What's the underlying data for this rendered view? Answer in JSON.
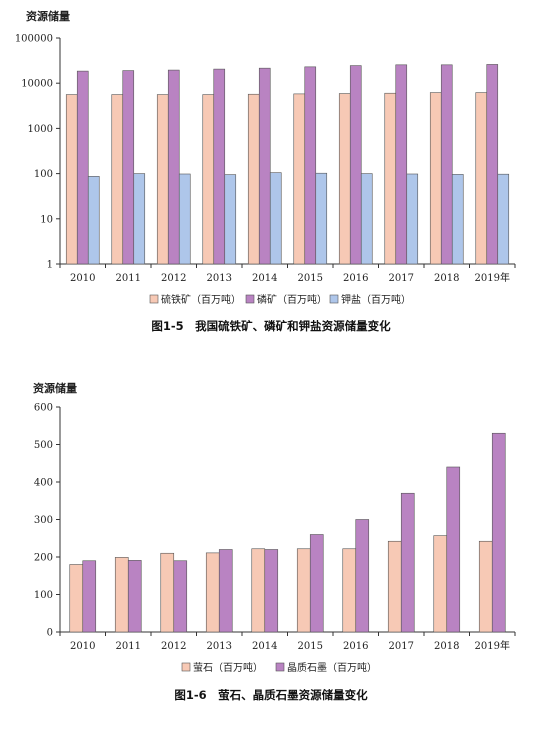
{
  "chart_data": [
    {
      "type": "bar",
      "ylabel": "资源储量",
      "categories": [
        "2010",
        "2011",
        "2012",
        "2013",
        "2014",
        "2015",
        "2016",
        "2017",
        "2018",
        "2019年"
      ],
      "yscale": "log",
      "ylim": [
        1,
        100000
      ],
      "yticks": [
        "1",
        "10",
        "100",
        "1000",
        "10000",
        "100000"
      ],
      "grid": false,
      "legend": "bottom",
      "series": [
        {
          "name": "硫铁矿（百万吨）",
          "color": "#f7c9b5",
          "values": [
            5600,
            5600,
            5600,
            5600,
            5700,
            5800,
            5900,
            6000,
            6200,
            6200
          ]
        },
        {
          "name": "磷矿（百万吨）",
          "color": "#b983c2",
          "values": [
            18500,
            19000,
            19500,
            20500,
            21500,
            23000,
            24500,
            25500,
            25500,
            26000
          ]
        },
        {
          "name": "钾盐（百万吨）",
          "color": "#aec6ea",
          "values": [
            87,
            100,
            98,
            95,
            105,
            102,
            100,
            98,
            96,
            97
          ]
        }
      ],
      "caption": "图1-5　我国硫铁矿、磷矿和钾盐资源储量变化"
    },
    {
      "type": "bar",
      "ylabel": "资源储量",
      "categories": [
        "2010",
        "2011",
        "2012",
        "2013",
        "2014",
        "2015",
        "2016",
        "2017",
        "2018",
        "2019年"
      ],
      "yscale": "linear",
      "ylim": [
        0,
        600
      ],
      "yticks": [
        "0",
        "100",
        "200",
        "300",
        "400",
        "500",
        "600"
      ],
      "grid": false,
      "legend": "bottom",
      "series": [
        {
          "name": "萤石（百万吨）",
          "color": "#f7c9b5",
          "values": [
            180,
            199,
            210,
            211,
            222,
            222,
            222,
            242,
            257,
            242
          ]
        },
        {
          "name": "晶质石墨（百万吨）",
          "color": "#b983c2",
          "values": [
            190,
            191,
            190,
            220,
            220,
            260,
            300,
            370,
            440,
            530
          ]
        }
      ],
      "caption": "图1-6　萤石、晶质石墨资源储量变化"
    }
  ]
}
